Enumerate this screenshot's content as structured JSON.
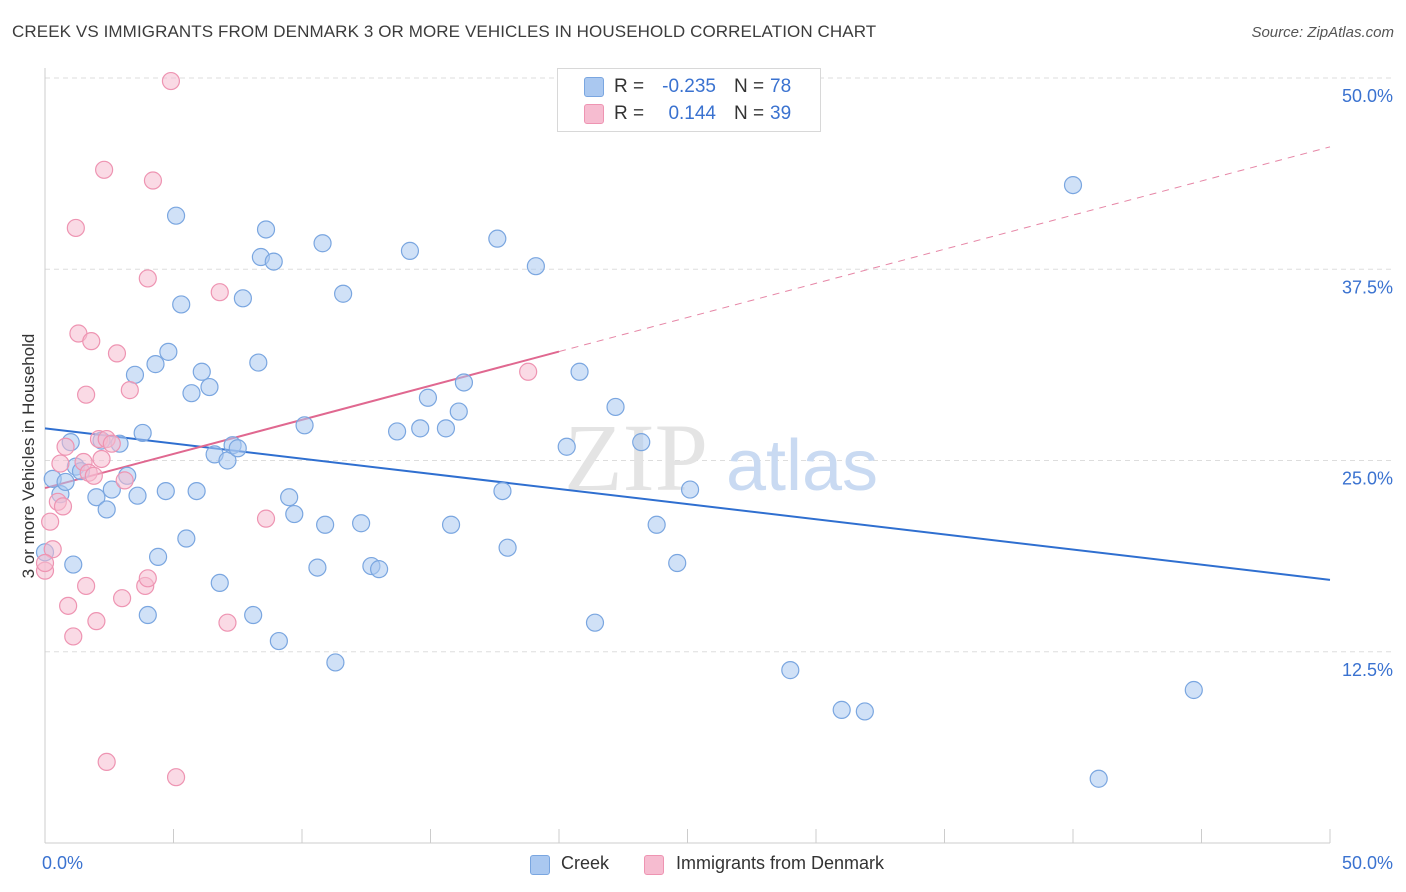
{
  "header": {
    "title": "CREEK VS IMMIGRANTS FROM DENMARK 3 OR MORE VEHICLES IN HOUSEHOLD CORRELATION CHART",
    "source": "Source: ZipAtlas.com"
  },
  "watermark": {
    "zip": "ZIP",
    "atlas": "atlas"
  },
  "colors": {
    "creek_fill": "#aac8f0",
    "creek_stroke": "#7aa6e0",
    "creek_line": "#2f6fd0",
    "denmark_fill": "#f6bcd0",
    "denmark_stroke": "#ee94b2",
    "denmark_line": "#e06890",
    "tick_label": "#3a72d0"
  },
  "legend_top": {
    "rows": [
      {
        "series": "creek",
        "r_label": "R =",
        "r_value": "-0.235",
        "n_label": "N =",
        "n_value": "78"
      },
      {
        "series": "denmark",
        "r_label": "R =",
        "r_value": "0.144",
        "n_label": "N =",
        "n_value": "39"
      }
    ]
  },
  "legend_bottom": {
    "items": [
      {
        "series": "creek",
        "label": "Creek"
      },
      {
        "series": "denmark",
        "label": "Immigrants from Denmark"
      }
    ]
  },
  "chart_data": {
    "type": "scatter",
    "title": "CREEK VS IMMIGRANTS FROM DENMARK 3 OR MORE VEHICLES IN HOUSEHOLD CORRELATION CHART",
    "xlabel": "",
    "ylabel": "3 or more Vehicles in Household",
    "xlim": [
      0,
      50
    ],
    "ylim": [
      0,
      50
    ],
    "x_tick_labels": [
      {
        "value": 0,
        "label": "0.0%"
      },
      {
        "value": 50,
        "label": "50.0%"
      }
    ],
    "y_tick_labels": [
      {
        "value": 12.5,
        "label": "12.5%"
      },
      {
        "value": 25,
        "label": "25.0%"
      },
      {
        "value": 37.5,
        "label": "37.5%"
      },
      {
        "value": 50,
        "label": "50.0%"
      }
    ],
    "x_minor_ticks": [
      5,
      10,
      15,
      20,
      25,
      30,
      35,
      40,
      45,
      50
    ],
    "grid": true,
    "legend_position": "top-center",
    "series": [
      {
        "name": "Creek",
        "r": -0.235,
        "n": 78,
        "trend": {
          "x": [
            0,
            50
          ],
          "y": [
            27.1,
            17.2
          ],
          "dashed_from_x": null
        },
        "points": [
          [
            0.0,
            19.0
          ],
          [
            0.3,
            23.8
          ],
          [
            0.6,
            22.8
          ],
          [
            0.8,
            23.6
          ],
          [
            1.0,
            26.2
          ],
          [
            1.1,
            18.2
          ],
          [
            1.2,
            24.6
          ],
          [
            1.4,
            24.3
          ],
          [
            2.0,
            22.6
          ],
          [
            2.2,
            26.3
          ],
          [
            2.4,
            21.8
          ],
          [
            2.6,
            23.1
          ],
          [
            2.9,
            26.1
          ],
          [
            3.2,
            24.0
          ],
          [
            3.5,
            30.6
          ],
          [
            3.6,
            22.7
          ],
          [
            3.8,
            26.8
          ],
          [
            4.0,
            14.9
          ],
          [
            4.3,
            31.3
          ],
          [
            4.4,
            18.7
          ],
          [
            4.7,
            23.0
          ],
          [
            4.8,
            32.1
          ],
          [
            5.1,
            41.0
          ],
          [
            5.3,
            35.2
          ],
          [
            5.5,
            19.9
          ],
          [
            5.7,
            29.4
          ],
          [
            5.9,
            23.0
          ],
          [
            6.1,
            30.8
          ],
          [
            6.4,
            29.8
          ],
          [
            6.6,
            25.4
          ],
          [
            6.8,
            17.0
          ],
          [
            7.1,
            25.0
          ],
          [
            7.3,
            26.0
          ],
          [
            7.5,
            25.8
          ],
          [
            7.7,
            35.6
          ],
          [
            8.1,
            14.9
          ],
          [
            8.3,
            31.4
          ],
          [
            8.4,
            38.3
          ],
          [
            8.6,
            40.1
          ],
          [
            8.9,
            38.0
          ],
          [
            9.1,
            13.2
          ],
          [
            9.5,
            22.6
          ],
          [
            9.7,
            21.5
          ],
          [
            10.1,
            27.3
          ],
          [
            10.6,
            18.0
          ],
          [
            10.8,
            39.2
          ],
          [
            10.9,
            20.8
          ],
          [
            11.3,
            11.8
          ],
          [
            11.6,
            35.9
          ],
          [
            12.3,
            20.9
          ],
          [
            12.7,
            18.1
          ],
          [
            13.0,
            17.9
          ],
          [
            13.7,
            26.9
          ],
          [
            14.2,
            38.7
          ],
          [
            14.6,
            27.1
          ],
          [
            14.9,
            29.1
          ],
          [
            15.6,
            27.1
          ],
          [
            15.8,
            20.8
          ],
          [
            16.1,
            28.2
          ],
          [
            16.3,
            30.1
          ],
          [
            17.8,
            23.0
          ],
          [
            18.0,
            19.3
          ],
          [
            17.6,
            39.5
          ],
          [
            19.1,
            37.7
          ],
          [
            20.3,
            25.9
          ],
          [
            20.8,
            30.8
          ],
          [
            21.4,
            14.4
          ],
          [
            22.2,
            28.5
          ],
          [
            23.2,
            26.2
          ],
          [
            23.8,
            20.8
          ],
          [
            24.6,
            18.3
          ],
          [
            25.1,
            23.1
          ],
          [
            29.0,
            11.3
          ],
          [
            31.0,
            8.7
          ],
          [
            31.9,
            8.6
          ],
          [
            40.0,
            43.0
          ],
          [
            44.7,
            10.0
          ],
          [
            41.0,
            4.2
          ]
        ]
      },
      {
        "name": "Immigrants from Denmark",
        "r": 0.144,
        "n": 39,
        "trend": {
          "x": [
            0,
            50
          ],
          "y": [
            23.2,
            45.5
          ],
          "dashed_from_x": 20
        },
        "points": [
          [
            0.0,
            17.8
          ],
          [
            0.2,
            21.0
          ],
          [
            0.3,
            19.2
          ],
          [
            0.5,
            22.3
          ],
          [
            0.6,
            24.8
          ],
          [
            0.7,
            22.0
          ],
          [
            0.8,
            25.9
          ],
          [
            0.9,
            15.5
          ],
          [
            1.1,
            13.5
          ],
          [
            1.2,
            40.2
          ],
          [
            1.3,
            33.3
          ],
          [
            1.5,
            24.9
          ],
          [
            1.6,
            29.3
          ],
          [
            1.6,
            16.8
          ],
          [
            1.7,
            24.2
          ],
          [
            1.8,
            32.8
          ],
          [
            2.0,
            14.5
          ],
          [
            2.1,
            26.4
          ],
          [
            2.2,
            25.1
          ],
          [
            2.3,
            44.0
          ],
          [
            2.4,
            26.4
          ],
          [
            2.4,
            5.3
          ],
          [
            2.6,
            26.1
          ],
          [
            2.8,
            32.0
          ],
          [
            3.0,
            16.0
          ],
          [
            3.1,
            23.7
          ],
          [
            3.3,
            29.6
          ],
          [
            3.9,
            16.8
          ],
          [
            4.0,
            17.3
          ],
          [
            4.0,
            36.9
          ],
          [
            4.2,
            43.3
          ],
          [
            4.9,
            49.8
          ],
          [
            5.1,
            4.3
          ],
          [
            6.8,
            36.0
          ],
          [
            7.1,
            14.4
          ],
          [
            8.6,
            21.2
          ],
          [
            18.8,
            30.8
          ],
          [
            0.0,
            18.3
          ],
          [
            1.9,
            24.0
          ]
        ]
      }
    ]
  }
}
